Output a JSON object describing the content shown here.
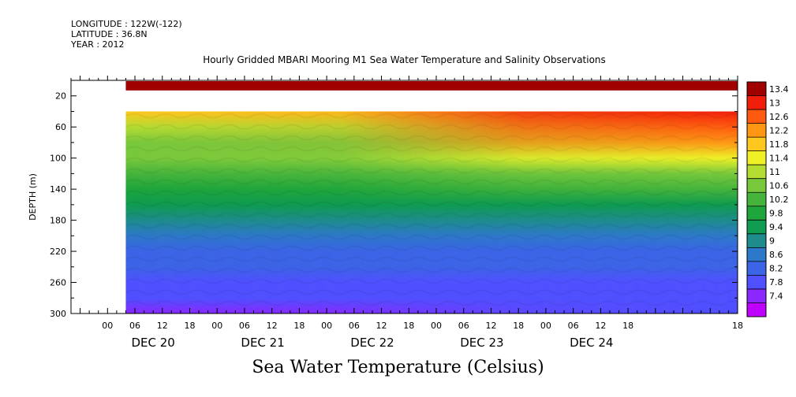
{
  "header": {
    "longitude": "LONGITUDE : 122W(-122)",
    "latitude": "LATITUDE : 36.8N",
    "year": "YEAR : 2012"
  },
  "chart_title": "Hourly Gridded MBARI Mooring M1 Sea Water Temperature and Salinity Observations",
  "footer_label": "Sea Water Temperature (Celsius)",
  "chart_data": {
    "type": "heatmap",
    "title": "Hourly Gridded MBARI Mooring M1 Sea Water Temperature and Salinity Observations",
    "ylabel": "DEPTH (m)",
    "xlabel": "",
    "ylim": [
      300,
      0
    ],
    "yticks": [
      20,
      60,
      100,
      140,
      180,
      220,
      260,
      300
    ],
    "x_hour_range": [
      -8,
      138
    ],
    "x_tick_labels": [
      "00",
      "06",
      "12",
      "18",
      "00",
      "06",
      "12",
      "18",
      "00",
      "06",
      "12",
      "18",
      "00",
      "06",
      "12",
      "18",
      "00",
      "06",
      "12",
      "18"
    ],
    "x_tick_hours": [
      0,
      6,
      12,
      18,
      24,
      30,
      36,
      42,
      48,
      54,
      60,
      66,
      72,
      78,
      84,
      90,
      96,
      102,
      108,
      114
    ],
    "x_extra_label": "18",
    "x_extra_hour": 138,
    "day_labels": [
      "DEC 20",
      "DEC 21",
      "DEC 22",
      "DEC 23",
      "DEC 24"
    ],
    "day_label_hours": [
      10,
      34,
      58,
      82,
      106
    ],
    "data_start_hour": 4,
    "surface_depth_m": 10,
    "surface_value": 13.4,
    "gap_depth_range_m": [
      13,
      40
    ],
    "profile_depths_m": [
      40,
      60,
      80,
      100,
      120,
      140,
      160,
      180,
      200,
      220,
      240,
      260,
      280,
      300
    ],
    "profile_values_dec20": [
      12.0,
      11.3,
      10.9,
      10.6,
      10.3,
      9.9,
      9.5,
      9.1,
      8.8,
      8.5,
      8.2,
      8.0,
      7.8,
      7.5
    ],
    "profile_values_dec24": [
      13.2,
      12.8,
      12.4,
      11.5,
      10.8,
      10.2,
      9.7,
      9.2,
      8.8,
      8.5,
      8.3,
      8.1,
      7.9,
      7.8
    ],
    "colorbar_levels": [
      7.4,
      7.8,
      8.2,
      8.6,
      9,
      9.4,
      9.8,
      10.2,
      10.6,
      11,
      11.4,
      11.8,
      12.2,
      12.6,
      13,
      13.4
    ],
    "colorbar_labels": [
      "13.4",
      "13",
      "12.6",
      "12.2",
      "11.8",
      "11.4",
      "11",
      "10.6",
      "10.2",
      "9.8",
      "9.4",
      "9",
      "8.6",
      "8.2",
      "7.8",
      "7.4"
    ],
    "colorscale": [
      "#c000ff",
      "#8a28ff",
      "#5050ff",
      "#3c64e6",
      "#2d78c8",
      "#1e8c8c",
      "#0f9b50",
      "#1ea53c",
      "#46b43c",
      "#78c83c",
      "#b4dc32",
      "#f0f028",
      "#ffc81e",
      "#ff9614",
      "#ff5a0f",
      "#f01e0a",
      "#a00000"
    ]
  }
}
